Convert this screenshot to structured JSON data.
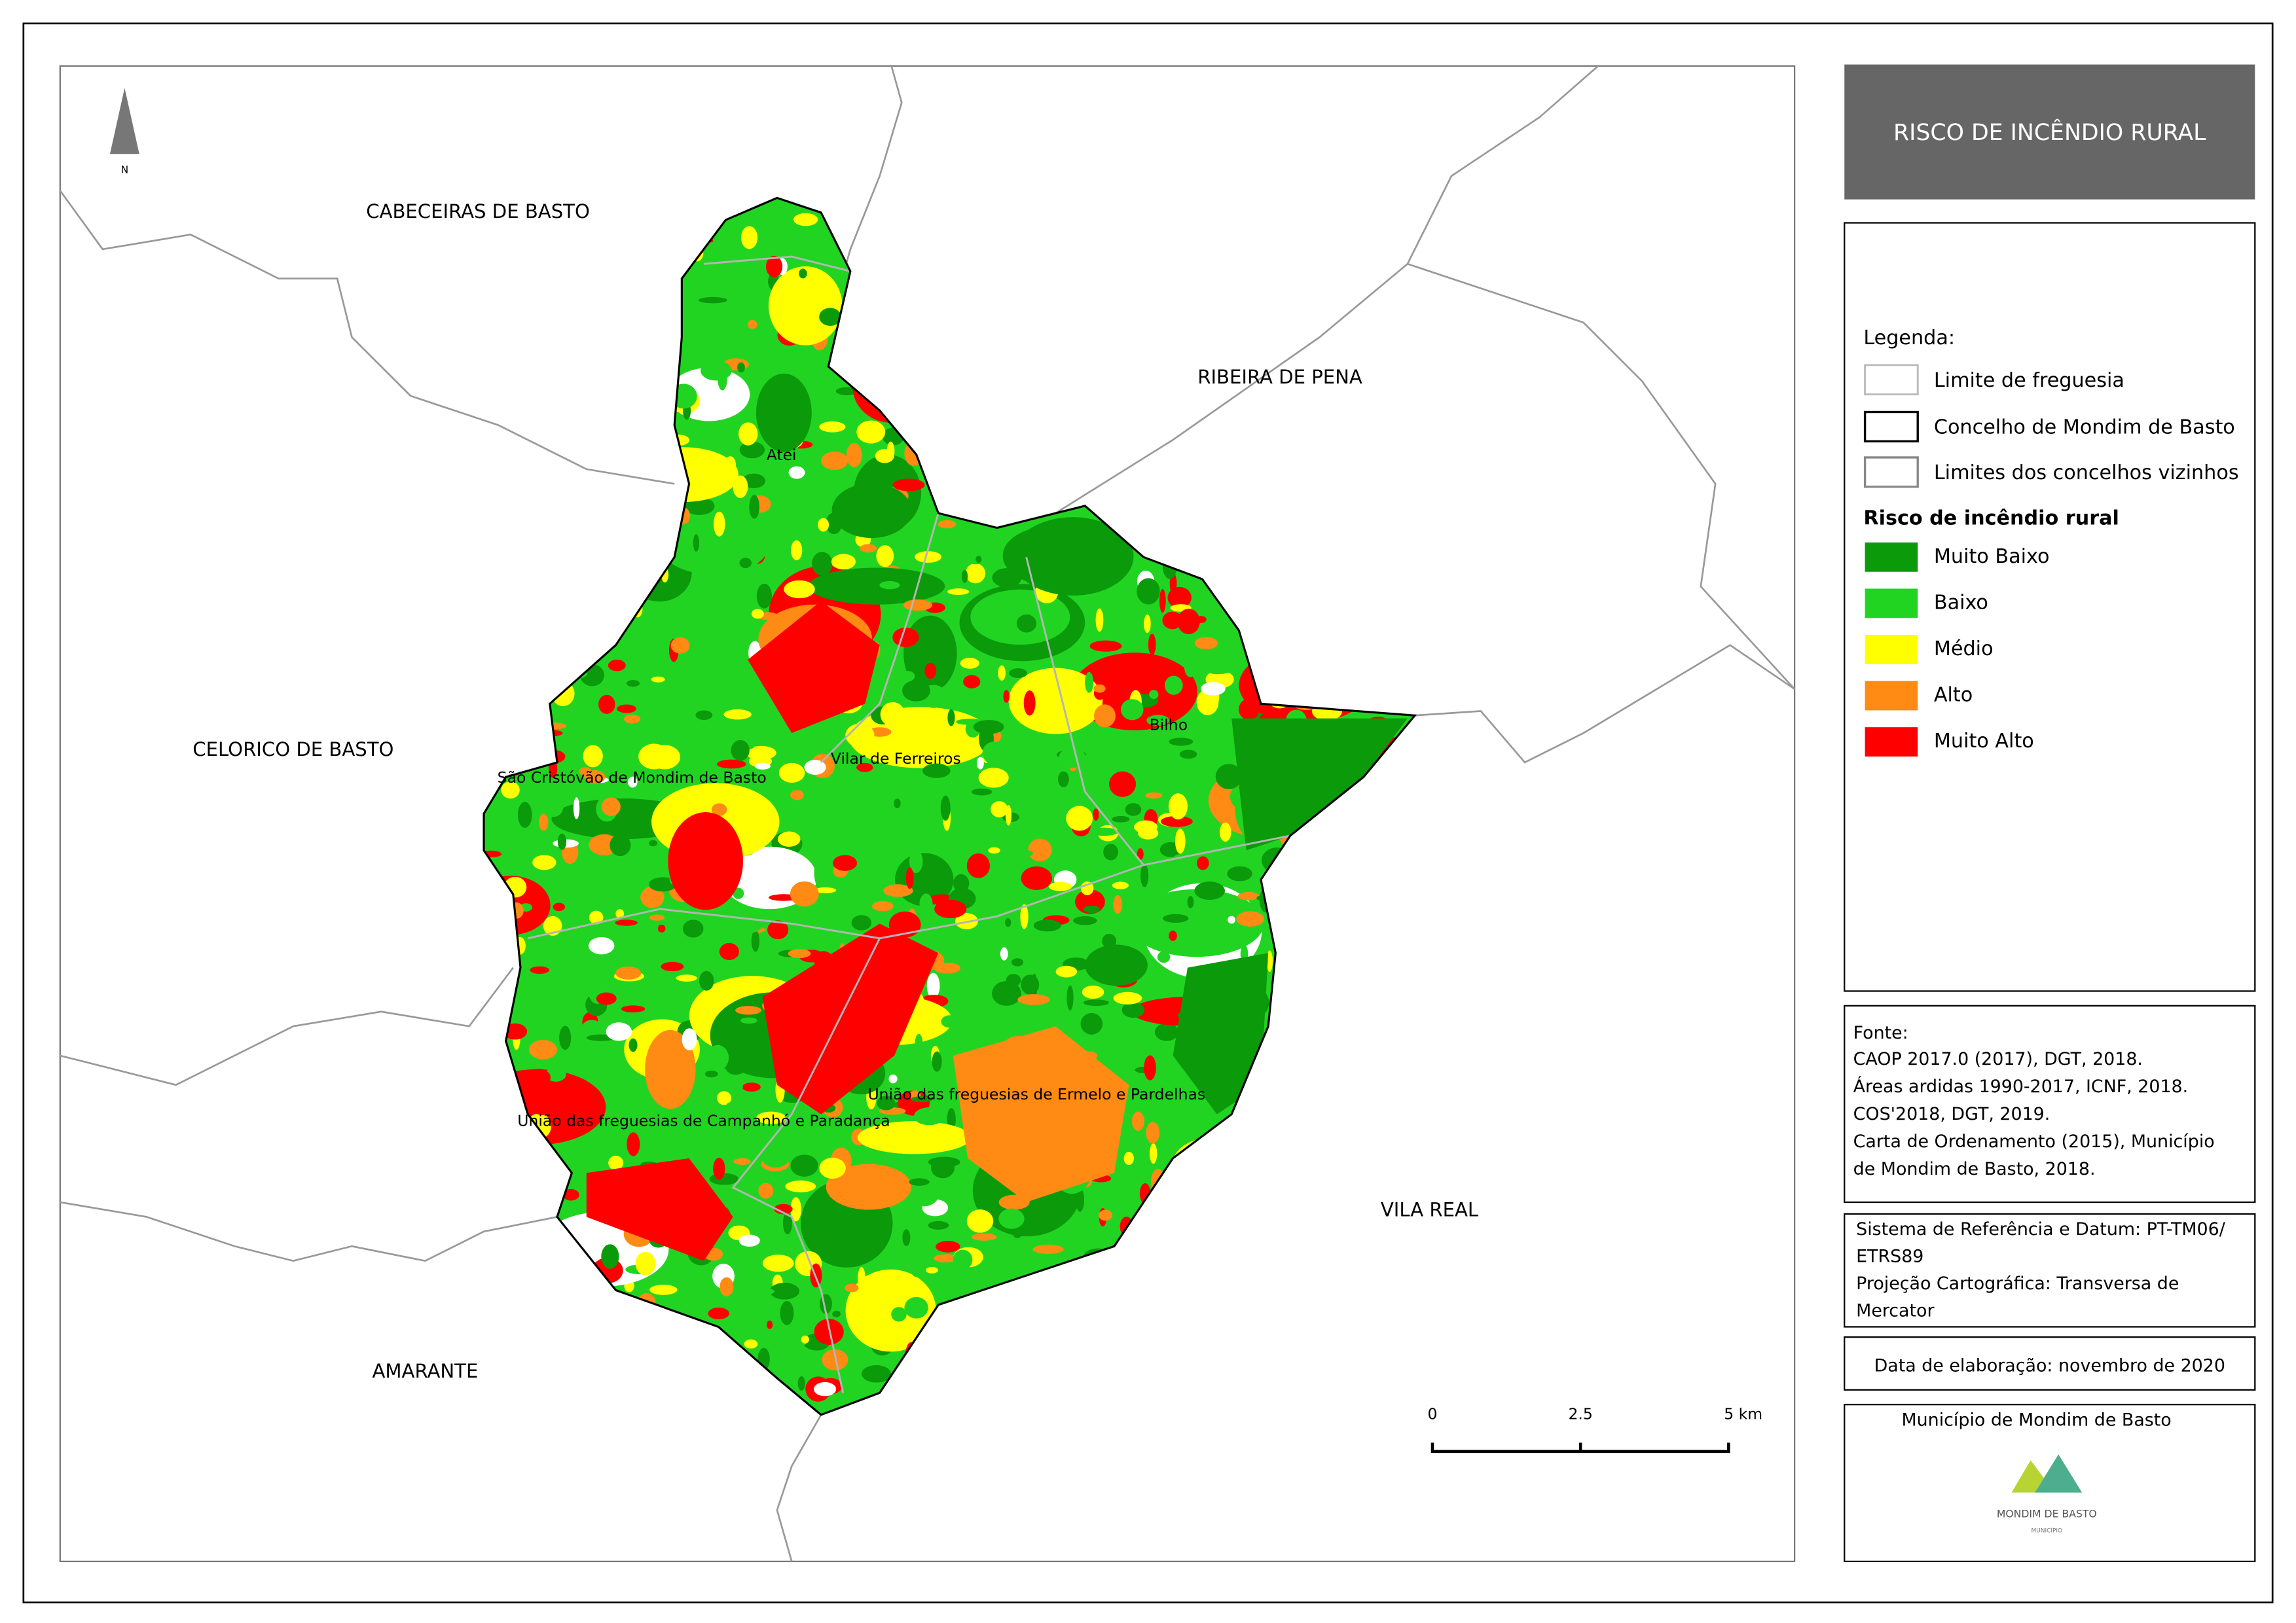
{
  "title": "RISCO DE INCÊNDIO RURAL",
  "map": {
    "neighbors": [
      "CABECEIRAS DE BASTO",
      "RIBEIRA DE PENA",
      "CELORICO DE BASTO",
      "VILA REAL",
      "AMARANTE"
    ],
    "parishes": [
      "Atei",
      "Bilho",
      "Vilar de Ferreiros",
      "São Cristóvão de Mondim de Basto",
      "União das freguesias de Ermelo e Pardelhas",
      "União das freguesias de Campanhó e Paradança"
    ]
  },
  "legend": {
    "heading": "Legenda:",
    "boundaries": [
      "Limite de freguesia",
      "Concelho de Mondim de Basto",
      "Limites dos concelhos vizinhos"
    ],
    "risk_heading": "Risco de incêndio rural",
    "classes": [
      {
        "label": "Muito Baixo",
        "color": "#0a9a0a"
      },
      {
        "label": "Baixo",
        "color": "#22d422"
      },
      {
        "label": "Médio",
        "color": "#ffff00"
      },
      {
        "label": "Alto",
        "color": "#ff8a14"
      },
      {
        "label": "Muito Alto",
        "color": "#ff0000"
      }
    ]
  },
  "sources": {
    "heading": "Fonte:",
    "lines": [
      "CAOP 2017.0 (2017), DGT, 2018.",
      "Áreas ardidas 1990-2017, ICNF, 2018.",
      "COS'2018, DGT, 2019.",
      "Carta de Ordenamento (2015), Município",
      "de Mondim de Basto, 2018."
    ]
  },
  "reference": {
    "lines": [
      "Sistema de Referência e Datum: PT-TM06/",
      "ETRS89",
      "Projeção Cartográfica: Transversa de",
      "Mercator"
    ]
  },
  "date": "Data de elaboração: novembro de 2020",
  "scale_bar": {
    "labels": [
      "0",
      "2.5",
      "5 km"
    ]
  },
  "north": "N",
  "logo": {
    "caption": "Município de Mondim de Basto",
    "name": "MONDIM DE BASTO",
    "sub": "MUNICÍPIO"
  }
}
